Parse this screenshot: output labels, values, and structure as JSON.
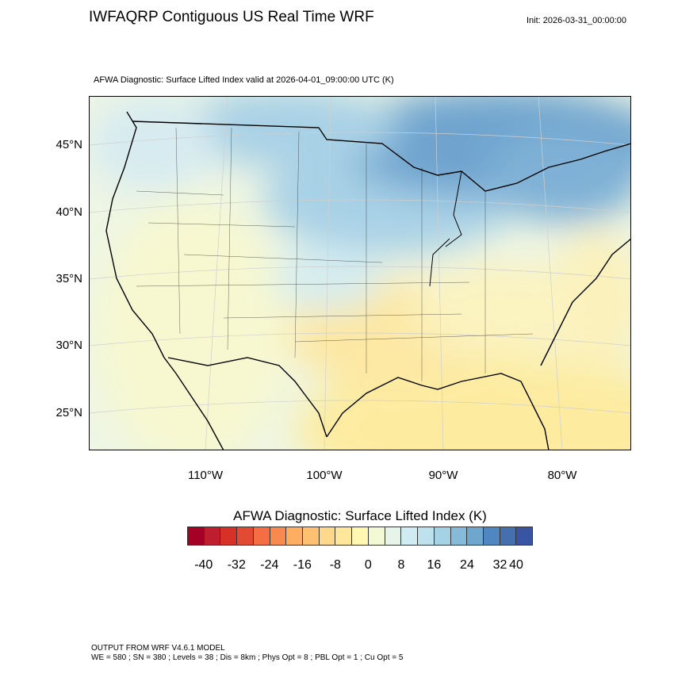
{
  "header": {
    "title": "IWFAQRP Contiguous US Real Time WRF",
    "init": "Init: 2026-03-31_00:00:00",
    "subtitle": "AFWA Diagnostic: Surface Lifted Index valid at 2026-04-01_09:00:00 UTC   (K)"
  },
  "map": {
    "lat_labels": [
      "45°N",
      "40°N",
      "35°N",
      "30°N",
      "25°N"
    ],
    "lon_labels": [
      "110°W",
      "100°W",
      "90°W",
      "80°W"
    ],
    "field": "Surface Lifted Index",
    "pattern": "Positive (stable, blue) values over the northern US and Canada; near-zero to slightly negative (yellow/orange) values over the southern Plains, Gulf of Mexico and the southeast"
  },
  "colorbar": {
    "title": "AFWA Diagnostic: Surface Lifted Index  (K)",
    "labels": [
      "-40",
      "-32",
      "-24",
      "-16",
      "-8",
      "0",
      "8",
      "16",
      "24",
      "32",
      "40"
    ],
    "colors": [
      "#a50026",
      "#be1e2d",
      "#d73027",
      "#e34a33",
      "#f46d43",
      "#f88a50",
      "#fdae61",
      "#fdc171",
      "#fed98b",
      "#fee79a",
      "#fff7b2",
      "#f3f9d5",
      "#e6f4ea",
      "#d1ebf2",
      "#bde2ee",
      "#a5d3e5",
      "#86bad9",
      "#6ea6ce",
      "#5087c0",
      "#4470b0",
      "#3a54a4",
      "#313695"
    ]
  },
  "footer": {
    "line1": "OUTPUT FROM WRF V4.6.1 MODEL",
    "line2": "WE = 580 ; SN = 380 ; Levels = 38 ; Dis = 8km ; Phys Opt = 8 ; PBL Opt = 1 ; Cu Opt = 5"
  }
}
